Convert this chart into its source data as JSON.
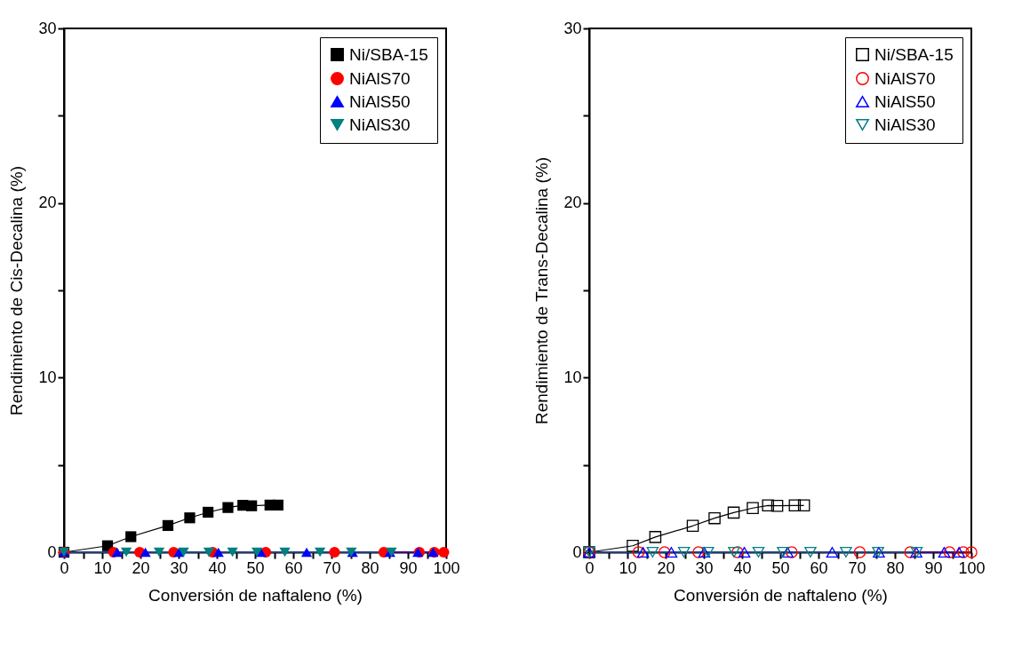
{
  "chart_data": [
    {
      "type": "line",
      "xlabel": "Conversión de naftaleno (%)",
      "ylabel": "Rendimiento de Cis-Decalina (%)",
      "xlim": [
        0,
        100
      ],
      "ylim": [
        0,
        30
      ],
      "xticks": [
        0,
        {
          "value": 5,
          "label": null
        },
        10,
        {
          "value": 15,
          "label": null
        },
        20,
        {
          "value": 25,
          "label": null
        },
        30,
        {
          "value": 35,
          "label": null
        },
        40,
        {
          "value": 45,
          "label": null
        },
        50,
        {
          "value": 55,
          "label": null
        },
        60,
        {
          "value": 65,
          "label": null
        },
        70,
        {
          "value": 75,
          "label": null
        },
        80,
        {
          "value": 85,
          "label": null
        },
        90,
        {
          "value": 95,
          "label": null
        },
        100
      ],
      "yticks": [
        0,
        {
          "value": 5,
          "label": null
        },
        10,
        {
          "value": 15,
          "label": null
        },
        20,
        {
          "value": 25,
          "label": null
        },
        30
      ],
      "grid": false,
      "legend": "top right",
      "series": [
        {
          "name": "Ni/SBA-15",
          "color": "#000000",
          "marker": "square",
          "x": [
            0,
            11.4,
            17.5,
            27.2,
            32.9,
            37.7,
            42.9,
            46.8,
            49.1,
            53.9,
            56.0
          ],
          "values": [
            0,
            0.37,
            0.89,
            1.53,
            1.97,
            2.29,
            2.56,
            2.69,
            2.66,
            2.7,
            2.7
          ]
        },
        {
          "name": "NiAlS70",
          "color": "#ff0000",
          "marker": "circle",
          "x": [
            0,
            13.0,
            19.8,
            28.7,
            38.9,
            52.8,
            70.8,
            83.7,
            93.0,
            96.9,
            99.4
          ],
          "values": [
            0,
            0,
            0,
            0,
            0,
            0,
            0,
            0,
            0,
            0,
            0
          ]
        },
        {
          "name": "NiAlS50",
          "color": "#0000ff",
          "marker": "triangle",
          "x": [
            0,
            13.9,
            21.3,
            30.1,
            40.4,
            51.5,
            63.5,
            75.5,
            85.3,
            92.6,
            96.6
          ],
          "values": [
            0,
            0,
            0,
            0,
            0,
            0,
            0,
            0,
            0,
            0,
            0
          ]
        },
        {
          "name": "NiAlS30",
          "color": "#008080",
          "marker": "triangle-down",
          "x": [
            0,
            16.3,
            24.9,
            31.3,
            37.9,
            44.1,
            50.5,
            57.8,
            67.0,
            75.2,
            85.7
          ],
          "values": [
            0,
            0,
            0,
            0,
            0,
            0,
            0,
            0,
            0,
            0,
            0
          ]
        }
      ]
    },
    {
      "type": "line",
      "xlabel": "Conversión de naftaleno (%)",
      "ylabel": "Rendimiento de Trans-Decalina (%)",
      "xlim": [
        0,
        100
      ],
      "ylim": [
        0,
        30
      ],
      "xticks": [
        0,
        {
          "value": 5,
          "label": null
        },
        10,
        {
          "value": 15,
          "label": null
        },
        20,
        {
          "value": 25,
          "label": null
        },
        30,
        {
          "value": 35,
          "label": null
        },
        40,
        {
          "value": 45,
          "label": null
        },
        50,
        {
          "value": 55,
          "label": null
        },
        60,
        {
          "value": 65,
          "label": null
        },
        70,
        {
          "value": 75,
          "label": null
        },
        80,
        {
          "value": 85,
          "label": null
        },
        90,
        {
          "value": 95,
          "label": null
        },
        100
      ],
      "yticks": [
        0,
        {
          "value": 5,
          "label": null
        },
        10,
        {
          "value": 15,
          "label": null
        },
        20,
        {
          "value": 25,
          "label": null
        },
        30
      ],
      "grid": false,
      "legend": "top right",
      "series": [
        {
          "name": "Ni/SBA-15",
          "color": "#000000",
          "marker": "square",
          "x": [
            0,
            11.4,
            17.3,
            27.1,
            32.8,
            37.8,
            42.8,
            46.8,
            49.2,
            53.8,
            56.2
          ],
          "values": [
            0,
            0.37,
            0.87,
            1.51,
            1.95,
            2.27,
            2.53,
            2.68,
            2.66,
            2.68,
            2.68
          ]
        },
        {
          "name": "NiAlS70",
          "color": "#ff0000",
          "marker": "circle",
          "x": [
            0,
            12.9,
            19.7,
            28.6,
            38.8,
            53.0,
            70.8,
            84.0,
            94.3,
            97.9,
            100.0
          ],
          "values": [
            0,
            0,
            0,
            0,
            0,
            0,
            0,
            0,
            0,
            0,
            0
          ]
        },
        {
          "name": "NiAlS50",
          "color": "#0000ff",
          "marker": "triangle",
          "x": [
            0,
            14.1,
            21.5,
            30.1,
            40.6,
            51.9,
            63.6,
            75.8,
            85.6,
            92.9,
            96.8
          ],
          "values": [
            0,
            0,
            0,
            0,
            0,
            0,
            0,
            0,
            0,
            0,
            0
          ]
        },
        {
          "name": "NiAlS30",
          "color": "#008080",
          "marker": "triangle-down",
          "x": [
            0,
            16.6,
            24.8,
            31.1,
            37.9,
            44.3,
            50.7,
            57.9,
            67.2,
            75.6,
            85.7
          ],
          "values": [
            0,
            0,
            0,
            0,
            0,
            0,
            0,
            0,
            0,
            0,
            0
          ]
        }
      ]
    }
  ]
}
